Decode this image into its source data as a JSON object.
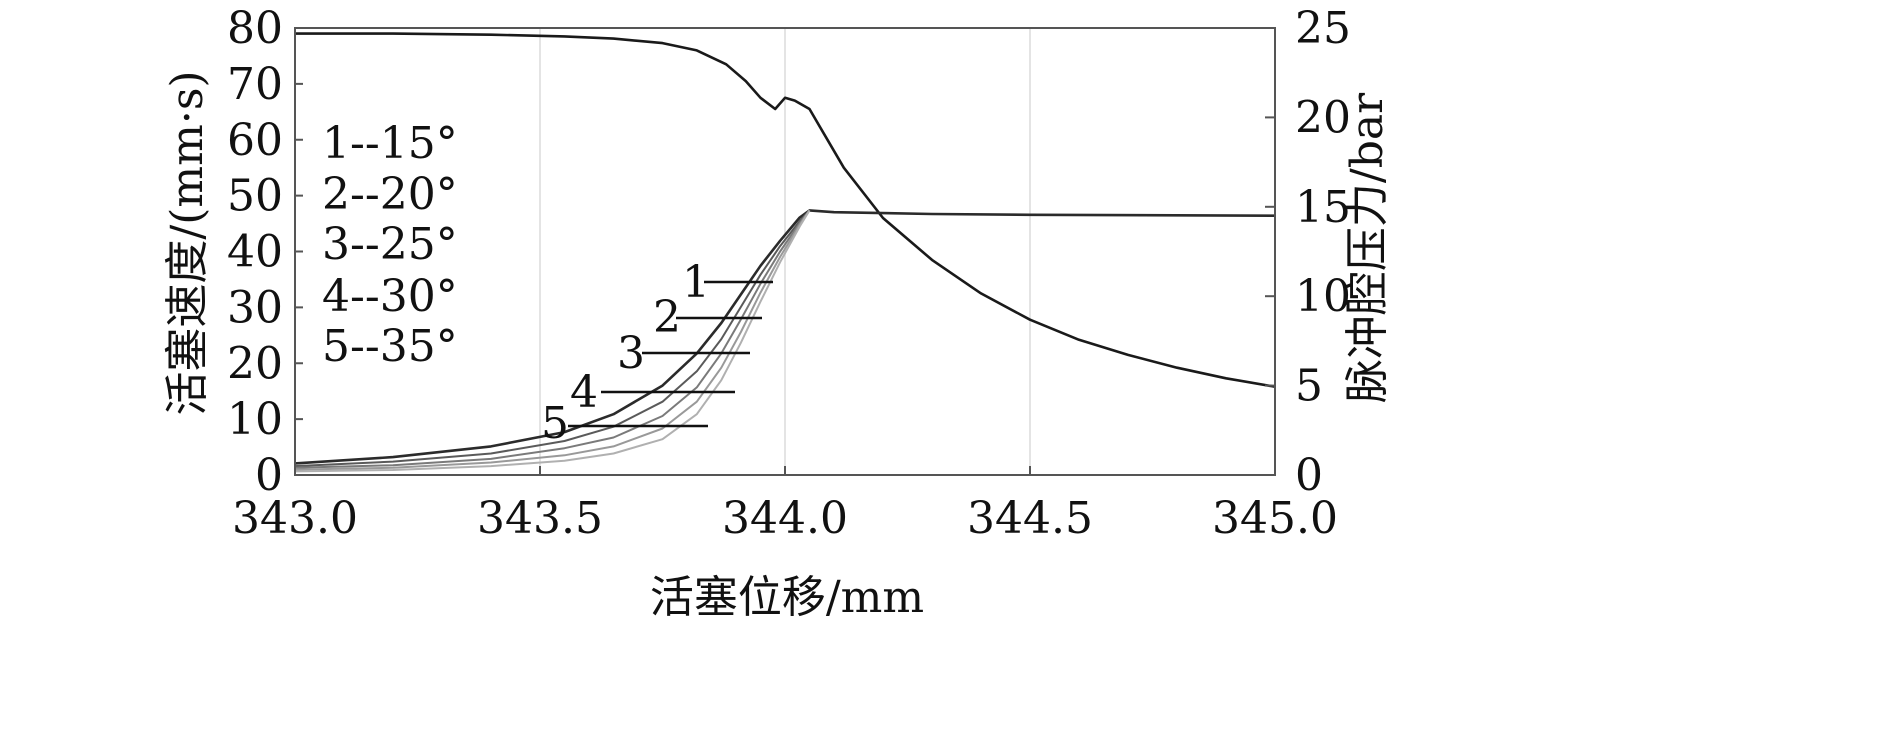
{
  "chart_data": {
    "type": "line",
    "xlabel": "活塞位移/mm",
    "ylabel_left": "活塞速度/(mm·s)",
    "ylabel_right": "脉冲腔压力/bar",
    "xlim": [
      343.0,
      345.0
    ],
    "ylim_left": [
      0,
      80
    ],
    "ylim_right": [
      0,
      25
    ],
    "x_ticks": [
      "343.0",
      "343.5",
      "344.0",
      "344.5",
      "345.0"
    ],
    "y_ticks_left": [
      "0",
      "10",
      "20",
      "30",
      "40",
      "50",
      "60",
      "70",
      "80"
    ],
    "y_ticks_right": [
      "0",
      "5",
      "10",
      "15",
      "20",
      "25"
    ],
    "grid": true,
    "legend": [
      "1--15°",
      "2--20°",
      "3--25°",
      "4--30°",
      "5--35°"
    ],
    "callout_labels": [
      "1",
      "2",
      "3",
      "4",
      "5"
    ],
    "series": [
      {
        "axis": "left",
        "x": [
          343.0,
          343.2,
          343.4,
          343.55,
          343.65,
          343.75,
          343.82,
          343.88,
          343.92,
          343.95,
          343.98,
          344.0,
          344.02,
          344.05,
          344.08,
          344.12,
          344.2,
          344.3,
          344.4,
          344.5,
          344.6,
          344.7,
          344.8,
          344.9,
          345.0
        ],
        "y": [
          79,
          79,
          78.8,
          78.5,
          78.1,
          77.3,
          76,
          73.5,
          70.5,
          67.5,
          65.5,
          67.5,
          67,
          65.5,
          61,
          55,
          46,
          38.5,
          32.5,
          27.8,
          24.2,
          21.5,
          19.2,
          17.3,
          15.8
        ]
      },
      {
        "axis": "right",
        "x": [
          343.0,
          343.2,
          343.4,
          343.55,
          343.65,
          343.75,
          343.82,
          343.87,
          343.91,
          343.95,
          343.99,
          344.03,
          344.05,
          344.1,
          344.3,
          344.5,
          345.0
        ],
        "y": [
          0.65,
          1.0,
          1.6,
          2.4,
          3.4,
          5.0,
          6.8,
          8.5,
          10.1,
          11.7,
          13.1,
          14.4,
          14.8,
          14.7,
          14.6,
          14.55,
          14.5
        ]
      },
      {
        "axis": "right",
        "x": [
          343.0,
          343.2,
          343.4,
          343.55,
          343.65,
          343.75,
          343.82,
          343.87,
          343.91,
          343.95,
          343.99,
          344.03,
          344.05
        ],
        "y": [
          0.5,
          0.75,
          1.2,
          1.9,
          2.7,
          4.1,
          5.8,
          7.6,
          9.4,
          11.2,
          12.8,
          14.2,
          14.8
        ]
      },
      {
        "axis": "right",
        "x": [
          343.0,
          343.2,
          343.4,
          343.55,
          343.65,
          343.75,
          343.82,
          343.87,
          343.91,
          343.95,
          343.99,
          344.03,
          344.05
        ],
        "y": [
          0.4,
          0.55,
          0.9,
          1.5,
          2.1,
          3.3,
          4.9,
          6.8,
          8.7,
          10.7,
          12.5,
          14.1,
          14.8
        ]
      },
      {
        "axis": "right",
        "x": [
          343.0,
          343.2,
          343.4,
          343.55,
          343.65,
          343.75,
          343.82,
          343.87,
          343.91,
          343.95,
          343.99,
          344.03,
          344.05
        ],
        "y": [
          0.3,
          0.4,
          0.7,
          1.1,
          1.6,
          2.6,
          4.1,
          6.0,
          8.0,
          10.2,
          12.2,
          14.0,
          14.8
        ]
      },
      {
        "axis": "right",
        "x": [
          343.0,
          343.2,
          343.4,
          343.55,
          343.65,
          343.75,
          343.82,
          343.87,
          343.91,
          343.95,
          343.99,
          344.03,
          344.05
        ],
        "y": [
          0.2,
          0.28,
          0.5,
          0.8,
          1.2,
          2.0,
          3.4,
          5.3,
          7.4,
          9.7,
          11.9,
          13.9,
          14.8
        ]
      }
    ]
  }
}
